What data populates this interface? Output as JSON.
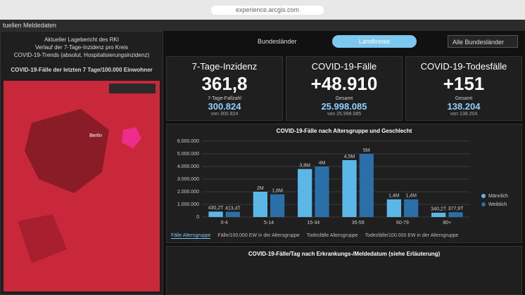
{
  "browser": {
    "url": "experience.arcgis.com"
  },
  "header": {
    "title": "tuellen Meldedaten"
  },
  "left_panel": {
    "links": [
      "Aktueller Lagebericht des RKI",
      "Verlauf der 7-Tage-Inzidenz pro Kreis",
      "COVID-19-Trends (absolut, Hospitalisierungsinzidenz)"
    ],
    "map": {
      "title": "COVID-19-Fälle der letzten 7 Tage/100.000 Einwohner",
      "city": "Berlin"
    }
  },
  "tabs": {
    "items": [
      "Bundesländer",
      "Landkreise"
    ],
    "dropdown": "Alle Bundesländer"
  },
  "cards": [
    {
      "title": "7-Tage-Inzidenz",
      "value": "361,8",
      "sub_label": "7-Tage-Fallzahl",
      "sub_value": "300.824",
      "note": "von 300.824"
    },
    {
      "title": "COVID-19-Fälle",
      "value": "+48.910",
      "sub_label": "Gesamt",
      "sub_value": "25.998.085",
      "note": "von 25.998.085"
    },
    {
      "title": "COVID-19-Todesfälle",
      "value": "+151",
      "sub_label": "Gesamt",
      "sub_value": "138.204",
      "note": "von 138.204"
    }
  ],
  "chart_data": {
    "type": "bar",
    "title": "COVID-19-Fälle nach Altersgruppe und Geschlecht",
    "categories": [
      "0-4",
      "5-14",
      "15-34",
      "35-59",
      "60-79",
      "80+"
    ],
    "series": [
      {
        "name": "Männlich",
        "color": "#5bb8e6",
        "values": [
          430200,
          2000000,
          3800000,
          4500000,
          1400000,
          340200
        ],
        "value_labels": [
          "430,2T",
          "2M",
          "3,8M",
          "4,5M",
          "1,4M",
          "340,2T"
        ]
      },
      {
        "name": "Weiblich",
        "color": "#2a6fa8",
        "values": [
          413400,
          1800000,
          4000000,
          5000000,
          1400000,
          377900
        ],
        "value_labels": [
          "413,4T",
          "1,8M",
          "4M",
          "5M",
          "1,4M",
          "377,9T"
        ]
      }
    ],
    "ylim": [
      0,
      6000000
    ],
    "yticks": [
      0,
      {
        "value": 1000000,
        "label": "1.000.000"
      },
      {
        "value": 2000000,
        "label": "2.000.000"
      },
      {
        "value": 3000000,
        "label": "3.000.000"
      },
      {
        "value": 4000000,
        "label": "4.000.000"
      },
      {
        "value": 5000000,
        "label": "5.000.000"
      },
      {
        "value": 6000000,
        "label": "6.000.000"
      }
    ],
    "grid": true,
    "legend": "right"
  },
  "chart_tabs": [
    "Fälle Altersgruppe",
    "Fälle/100.000 EW in der Altersgruppe",
    "Todesfälle Altersgruppe",
    "Todesfälle/100.000 EW in der Altersgruppe"
  ],
  "second_chart": {
    "title": "COVID-19-Fälle/Tag nach Erkrankungs-/Meldedatum (siehe Erläuterung)"
  }
}
